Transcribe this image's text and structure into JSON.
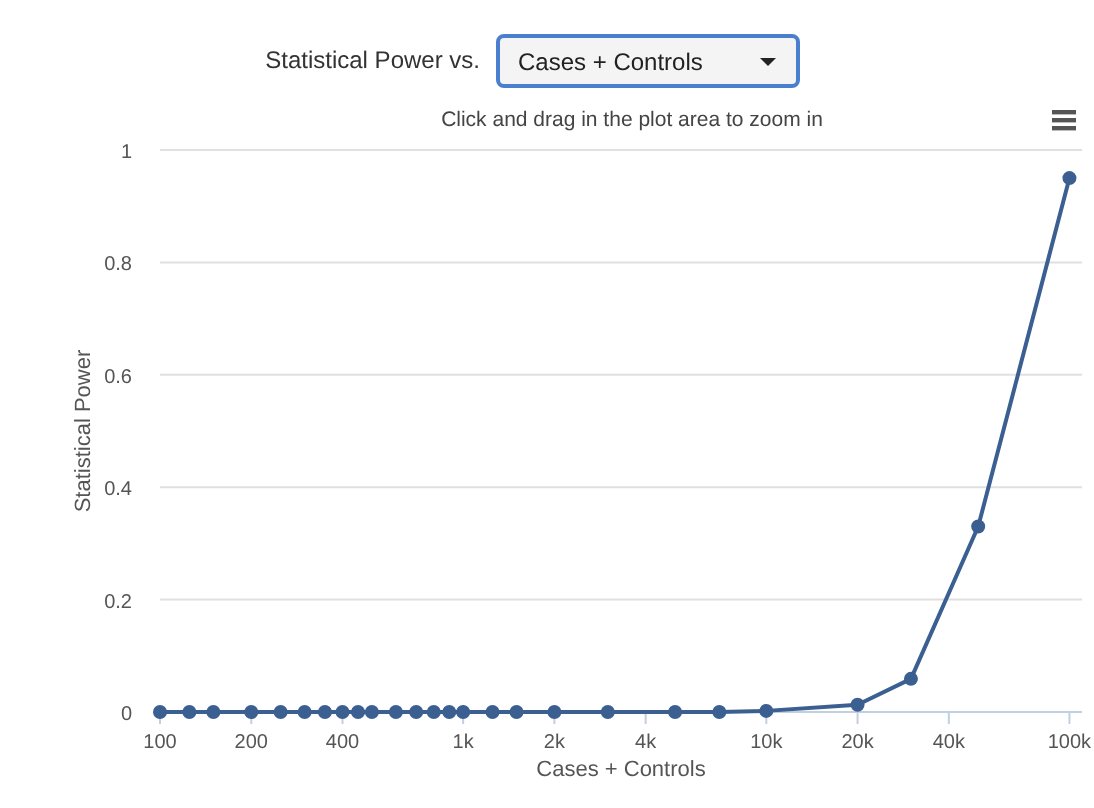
{
  "chart_data": {
    "type": "line",
    "title": "Statistical Power vs.",
    "subtitle": "Click and drag in the plot area to zoom in",
    "xlabel": "Cases + Controls",
    "ylabel": "Statistical Power",
    "annotations": [
      "Cases + Controls"
    ],
    "x": [
      100,
      125,
      150,
      200,
      250,
      300,
      350,
      400,
      450,
      500,
      600,
      700,
      800,
      900,
      1000,
      1250,
      1500,
      2000,
      3000,
      5000,
      7000,
      10000,
      20000,
      30000,
      50000,
      100000
    ],
    "series": [
      {
        "color": "#3b5f91",
        "values": [
          0,
          0,
          0,
          0,
          0,
          0,
          0,
          0,
          0,
          0,
          0,
          0,
          0,
          0,
          0,
          0,
          0,
          0,
          0,
          0,
          0,
          0.002,
          0.013,
          0.059,
          0.33,
          0.95
        ]
      }
    ],
    "log": "x",
    "xlim": [
      100,
      110000
    ],
    "xticks": [
      100,
      200,
      400,
      {
        "value": 1000,
        "label": "1k"
      },
      {
        "value": 2000,
        "label": "2k"
      },
      {
        "value": 4000,
        "label": "4k"
      },
      {
        "value": 10000,
        "label": "10k"
      },
      {
        "value": 20000,
        "label": "20k"
      },
      {
        "value": 40000,
        "label": "40k"
      },
      {
        "value": 100000,
        "label": "100k"
      }
    ],
    "ylim": [
      0,
      1
    ],
    "yticks": [
      0,
      0.2,
      0.4,
      0.6,
      0.8,
      1
    ],
    "grid": "y",
    "marker": "circle",
    "line_style": "solid"
  }
}
